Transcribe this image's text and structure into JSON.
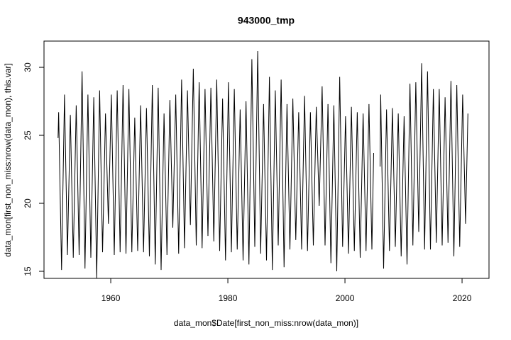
{
  "chart_data": {
    "type": "line",
    "title": "943000_tmp",
    "x_label": "data_mon$Date[first_non_miss:nrow(data_mon)]",
    "y_label": "data_mon[first_non_miss:nrow(data_mon), this.var]",
    "color": "#000000",
    "xlim": [
      1948.6,
      2024.6
    ],
    "xticks": [
      1960,
      1980,
      2000,
      2020
    ],
    "ylim": [
      14.48,
      31.93
    ],
    "yticks": [
      15,
      20,
      25,
      30
    ],
    "x": [
      1951.0,
      1951.1,
      1951.6,
      1952.1,
      1952.6,
      1953.1,
      1953.6,
      1954.1,
      1954.6,
      1955.1,
      1955.6,
      1956.1,
      1956.6,
      1957.1,
      1957.6,
      1958.1,
      1958.6,
      1959.1,
      1959.6,
      1960.1,
      1960.6,
      1961.1,
      1961.6,
      1962.1,
      1962.6,
      1963.1,
      1963.6,
      1964.1,
      1964.6,
      1965.1,
      1965.6,
      1966.1,
      1966.6,
      1967.1,
      1967.6,
      1968.1,
      1968.6,
      1969.1,
      1969.6,
      1970.1,
      1970.6,
      1971.1,
      1971.6,
      1972.1,
      1972.6,
      1973.1,
      1973.6,
      1974.1,
      1974.6,
      1975.1,
      1975.6,
      1976.1,
      1976.6,
      1977.1,
      1977.6,
      1978.1,
      1978.6,
      1979.1,
      1979.6,
      1980.1,
      1980.6,
      1981.1,
      1981.6,
      1982.1,
      1982.6,
      1983.1,
      1983.6,
      1984.1,
      1984.6,
      1985.1,
      1985.6,
      1986.1,
      1986.6,
      1987.1,
      1987.6,
      1988.1,
      1988.6,
      1989.1,
      1989.6,
      1990.1,
      1990.6,
      1991.1,
      1991.6,
      1992.1,
      1992.6,
      1993.1,
      1993.6,
      1994.1,
      1994.6,
      1995.1,
      1995.6,
      1996.1,
      1996.6,
      1997.1,
      1997.6,
      1998.1,
      1998.6,
      1999.1,
      1999.6,
      2000.1,
      2000.6,
      2001.1,
      2001.6,
      2002.1,
      2002.6,
      2003.1,
      2003.6,
      2004.1,
      2004.6,
      2004.9,
      2005.5,
      2006.0,
      2006.1,
      2006.6,
      2007.1,
      2007.6,
      2008.1,
      2008.6,
      2009.1,
      2009.6,
      2010.1,
      2010.6,
      2011.1,
      2011.6,
      2012.1,
      2012.6,
      2013.1,
      2013.6,
      2014.1,
      2014.6,
      2015.1,
      2015.6,
      2016.1,
      2016.6,
      2017.1,
      2017.6,
      2018.1,
      2018.6,
      2019.1,
      2019.6,
      2020.1,
      2020.6,
      2021.0
    ],
    "values": [
      24.8,
      26.7,
      15.1,
      28.0,
      16.2,
      26.5,
      16.0,
      27.2,
      16.2,
      29.7,
      15.2,
      28.0,
      16.0,
      27.8,
      14.5,
      28.3,
      16.4,
      26.6,
      18.5,
      28.0,
      16.2,
      28.3,
      16.4,
      28.7,
      16.3,
      28.4,
      16.4,
      26.3,
      16.5,
      27.2,
      16.4,
      27.0,
      16.1,
      28.7,
      15.5,
      28.5,
      15.1,
      26.6,
      16.2,
      27.6,
      18.2,
      28.0,
      16.3,
      29.1,
      16.7,
      28.3,
      18.4,
      29.9,
      16.9,
      28.9,
      16.7,
      28.4,
      17.6,
      28.5,
      17.2,
      29.1,
      16.5,
      27.7,
      15.8,
      28.9,
      16.4,
      28.4,
      16.6,
      26.9,
      15.8,
      27.5,
      15.5,
      30.6,
      16.8,
      31.2,
      16.3,
      27.3,
      15.8,
      29.3,
      15.1,
      28.3,
      16.9,
      29.1,
      15.3,
      27.3,
      16.6,
      27.7,
      17.3,
      26.7,
      16.6,
      27.9,
      16.5,
      26.7,
      16.9,
      27.1,
      19.8,
      28.6,
      16.9,
      27.3,
      15.6,
      27.2,
      15.0,
      29.3,
      16.8,
      26.4,
      16.3,
      27.1,
      16.5,
      26.7,
      16.0,
      26.6,
      16.5,
      27.3,
      16.6,
      23.7,
      null,
      22.7,
      28.0,
      15.2,
      26.9,
      16.5,
      27.0,
      16.8,
      26.6,
      16.1,
      26.4,
      15.5,
      28.8,
      16.9,
      28.9,
      17.9,
      30.3,
      16.6,
      29.7,
      16.6,
      28.4,
      17.1,
      28.4,
      16.9,
      27.8,
      17.1,
      29.0,
      16.1,
      28.7,
      16.8,
      28.0,
      18.5,
      26.6
    ]
  }
}
